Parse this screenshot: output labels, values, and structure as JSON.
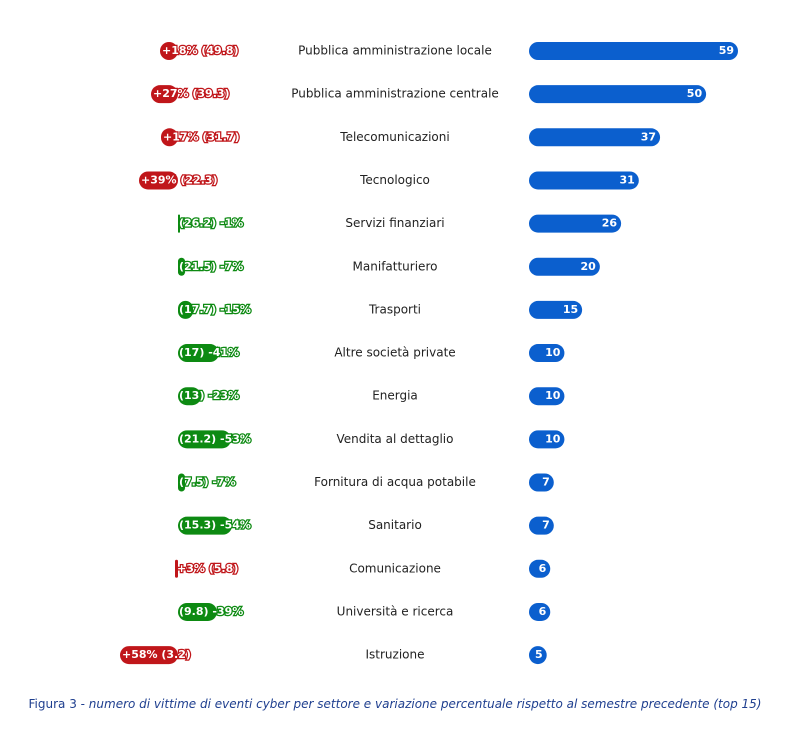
{
  "chart_data": {
    "type": "diverging-bar",
    "categories": [
      "Pubblica amministrazione locale",
      "Pubblica amministrazione centrale",
      "Telecomunicazioni",
      "Tecnologico",
      "Servizi finanziari",
      "Manifatturiero",
      "Trasporti",
      "Altre società private",
      "Energia",
      "Vendita al dettaglio",
      "Fornitura di acqua potabile",
      "Sanitario",
      "Comunicazione",
      "Università e ricerca",
      "Istruzione"
    ],
    "series": [
      {
        "name": "variazione",
        "positive_color": "#c0161a",
        "negative_color": "#0d8a12",
        "values": [
          18,
          27,
          17,
          39,
          -1,
          -7,
          -15,
          -41,
          -23,
          -53,
          -7,
          -54,
          3,
          -39,
          58
        ],
        "value_labels": [
          "+18% (49.8)",
          "+27% (39.3)",
          "+17% (31.7)",
          "+39% (22.3)",
          "(26.2) -1%",
          "(21.5) -7%",
          "(17.7) -15%",
          "(17) -41%",
          "(13) -23%",
          "(21.2) -53%",
          "(7.5) -7%",
          "(15.3) -54%",
          "+3% (5.8)",
          "(9.8) -39%",
          "+58% (3.2)"
        ]
      },
      {
        "name": "vittime",
        "color": "#0b5fce",
        "values": [
          59,
          50,
          37,
          31,
          26,
          20,
          15,
          10,
          10,
          10,
          7,
          7,
          6,
          6,
          5
        ]
      }
    ],
    "caption_label": "Figura 3 -",
    "caption": "numero di vittime di eventi cyber per settore e variazione percentuale rispetto al semestre precedente (top 15)"
  }
}
